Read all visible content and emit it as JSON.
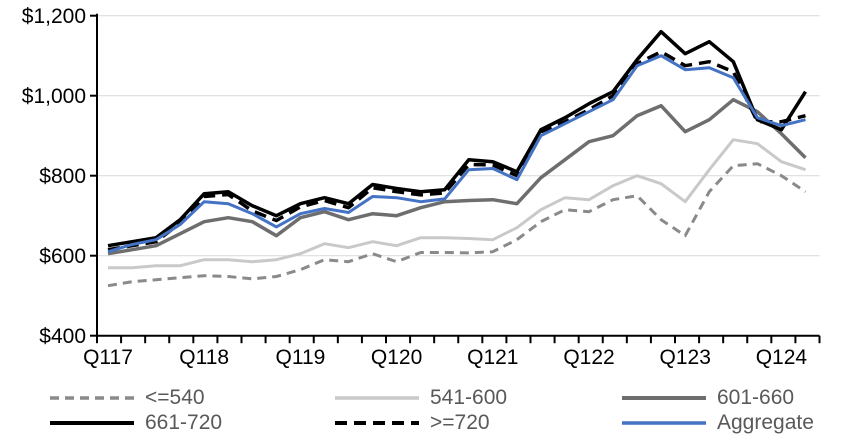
{
  "chart_data": {
    "type": "line",
    "title": "",
    "xlabel": "",
    "ylabel": "",
    "ylim": [
      400,
      1200
    ],
    "y_step": 200,
    "grid": "horizontal",
    "legend_position": "bottom",
    "y_tick_labels": [
      "$400",
      "$600",
      "$800",
      "$1,000",
      "$1,200"
    ],
    "x_tick_labels": [
      "Q117",
      "Q118",
      "Q119",
      "Q120",
      "Q121",
      "Q122",
      "Q123",
      "Q124"
    ],
    "categories": [
      "Q117",
      "Q217",
      "Q317",
      "Q417",
      "Q118",
      "Q218",
      "Q318",
      "Q418",
      "Q119",
      "Q219",
      "Q319",
      "Q419",
      "Q120",
      "Q220",
      "Q320",
      "Q420",
      "Q121",
      "Q221",
      "Q321",
      "Q421",
      "Q122",
      "Q222",
      "Q322",
      "Q422",
      "Q123",
      "Q223",
      "Q323",
      "Q423",
      "Q124",
      "Q224"
    ],
    "axis_color": "#000000",
    "gridline_color": "#D9D9D9",
    "legend_text_color": "#595959",
    "series": [
      {
        "name": "<=540",
        "color": "#8A8A8A",
        "dash": "9 6",
        "width": 3,
        "values": [
          525,
          535,
          540,
          545,
          550,
          548,
          542,
          548,
          565,
          590,
          585,
          605,
          585,
          608,
          608,
          607,
          610,
          640,
          685,
          715,
          710,
          740,
          750,
          690,
          650,
          760,
          825,
          830,
          800,
          760
        ]
      },
      {
        "name": "541-600",
        "color": "#C9C9C9",
        "dash": null,
        "width": 3,
        "values": [
          570,
          570,
          575,
          575,
          590,
          590,
          585,
          590,
          605,
          630,
          620,
          635,
          625,
          645,
          645,
          643,
          640,
          670,
          715,
          745,
          740,
          775,
          800,
          780,
          735,
          815,
          890,
          880,
          835,
          815
        ]
      },
      {
        "name": "601-660",
        "color": "#6E6E6E",
        "dash": null,
        "width": 3.5,
        "values": [
          605,
          615,
          625,
          655,
          685,
          695,
          685,
          650,
          695,
          710,
          690,
          705,
          700,
          720,
          735,
          738,
          740,
          730,
          795,
          840,
          885,
          900,
          950,
          975,
          910,
          940,
          990,
          960,
          905,
          845
        ]
      },
      {
        "name": "661-720",
        "color": "#000000",
        "dash": null,
        "width": 3.5,
        "values": [
          625,
          635,
          645,
          690,
          755,
          760,
          725,
          700,
          730,
          745,
          730,
          778,
          768,
          760,
          765,
          840,
          835,
          810,
          915,
          945,
          980,
          1010,
          1090,
          1160,
          1105,
          1135,
          1085,
          940,
          915,
          1010
        ]
      },
      {
        "name": ">=720",
        "color": "#000000",
        "dash": "12 7",
        "width": 3.5,
        "values": [
          615,
          625,
          635,
          682,
          748,
          753,
          712,
          688,
          722,
          738,
          720,
          770,
          760,
          752,
          757,
          828,
          827,
          800,
          910,
          935,
          965,
          1000,
          1080,
          1110,
          1075,
          1085,
          1060,
          935,
          935,
          950
        ]
      },
      {
        "name": "Aggregate",
        "color": "#4472C4",
        "dash": null,
        "width": 3,
        "values": [
          610,
          628,
          640,
          678,
          735,
          730,
          705,
          672,
          705,
          718,
          708,
          748,
          745,
          735,
          742,
          815,
          818,
          790,
          900,
          930,
          960,
          990,
          1075,
          1100,
          1065,
          1070,
          1045,
          945,
          925,
          940
        ]
      }
    ]
  }
}
